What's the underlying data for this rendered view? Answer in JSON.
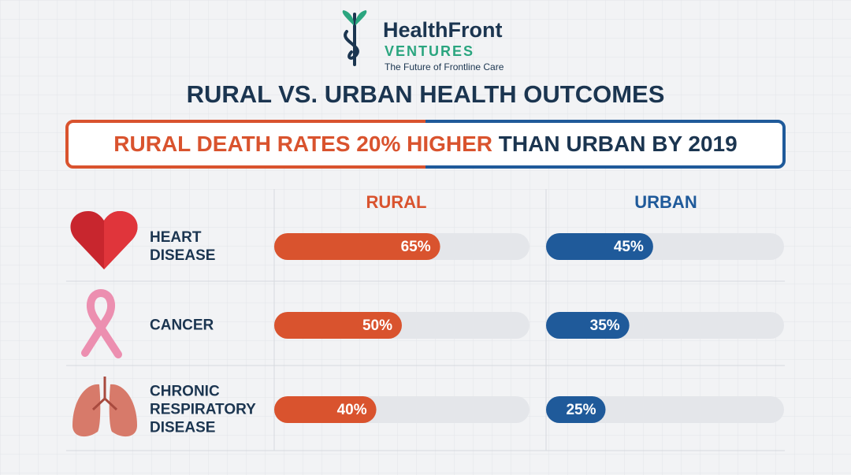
{
  "brand": {
    "name": "HealthFront",
    "sub": "VENTURES",
    "tagline": "The Future of Frontline Care"
  },
  "chart_data": {
    "type": "bar",
    "title": "RURAL VS. URBAN HEALTH OUTCOMES",
    "subtitle": [
      "RURAL DEATH RATES 20% HIGHER",
      "THAN URBAN BY 2019"
    ],
    "categories": [
      "HEART DISEASE",
      "CANCER",
      "CHRONIC RESPIRATORY DISEASE"
    ],
    "series": [
      {
        "name": "RURAL",
        "color": "#d9532e",
        "values": [
          65,
          50,
          40
        ],
        "value_labels": [
          "65%",
          "50%",
          "40%"
        ]
      },
      {
        "name": "URBAN",
        "color": "#1f5a9a",
        "values": [
          45,
          35,
          25
        ],
        "value_labels": [
          "45%",
          "35%",
          "25%"
        ]
      }
    ],
    "xlim": [
      0,
      100
    ]
  }
}
